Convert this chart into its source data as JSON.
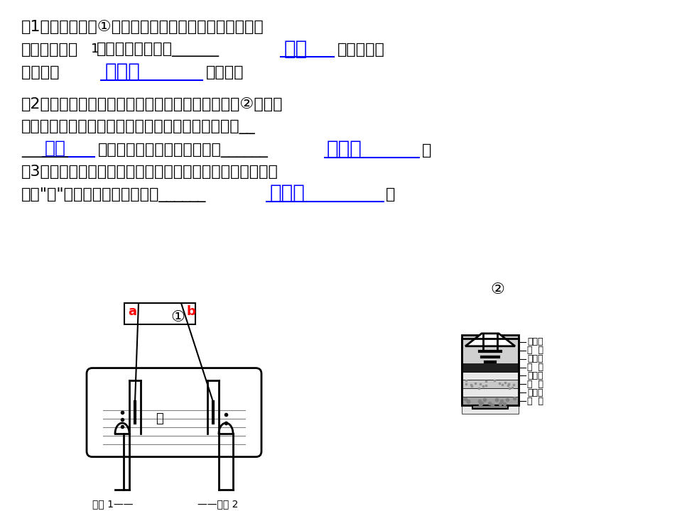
{
  "bg_color": "#ffffff",
  "text_color": "#000000",
  "blue_color": "#0000CD",
  "red_color": "#CC0000",
  "answer_color": "#0000FF",
  "underline_color": "#0000FF",
  "paragraph1_lines": [
    "（1）小刚利用图①所示的装置探究水的构成。通电一段",
    "时间后，试管1中所搜集的气体为______",
    "明水是由        构成的。"
  ],
  "answer1a": "氢气",
  "answer1b": "氢和氧",
  "paragraph2_lines": [
    "（2）小刚为了净化搜集到的雨水，自制了一种如图②所示的",
    "简易净水机，其中小卵石、石英沙和膨松棉的作用是__",
    " 过滤 ，起吸附异味和色素的物质是______。"
  ],
  "answer2a": "过滤",
  "answer2b": "活性炭",
  "paragraph3_lines": [
    "（3）矿泉水、蒸馏水、自来水和净化后的雨水都是生活中常",
    "见的“水”，其中属于纯净物的是______",
    " 蒸馏水 。"
  ],
  "answer3": "蒸馏水",
  "diagram1_label": "①",
  "diagram2_label": "②",
  "tube1_label": "试管 1——",
  "tube2_label": "——试管 2",
  "water_label": "水",
  "a_label": "a",
  "b_label": "b",
  "filter_labels": [
    "纱 布",
    "小卵石",
    "纱 布",
    "石英沙",
    "纱 布",
    "活性炭",
    "纱 布",
    "膨松棉"
  ]
}
